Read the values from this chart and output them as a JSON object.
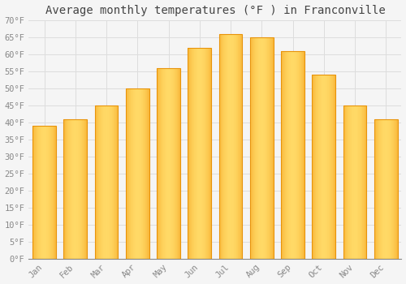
{
  "title": "Average monthly temperatures (°F ) in Franconville",
  "months": [
    "Jan",
    "Feb",
    "Mar",
    "Apr",
    "May",
    "Jun",
    "Jul",
    "Aug",
    "Sep",
    "Oct",
    "Nov",
    "Dec"
  ],
  "values": [
    39,
    41,
    45,
    50,
    56,
    62,
    66,
    65,
    61,
    54,
    45,
    41
  ],
  "bar_color_center": "#FFD966",
  "bar_color_edge": "#F5A623",
  "bar_color_dark": "#E8940A",
  "background_color": "#F5F5F5",
  "grid_color": "#DDDDDD",
  "ylim": [
    0,
    70
  ],
  "yticks": [
    0,
    5,
    10,
    15,
    20,
    25,
    30,
    35,
    40,
    45,
    50,
    55,
    60,
    65,
    70
  ],
  "ylabel_suffix": "°F",
  "title_fontsize": 10,
  "tick_fontsize": 7.5,
  "font_family": "monospace",
  "bar_width": 0.75
}
